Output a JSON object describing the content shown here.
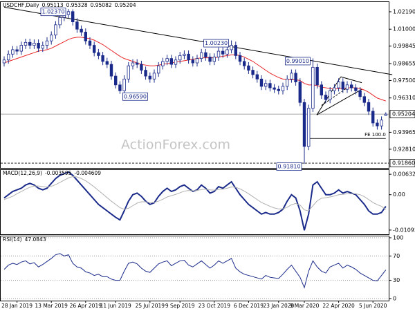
{
  "chart_data": {
    "type": "candlestick",
    "symbol": "USDCHF,Daily",
    "header_values": [
      0.95113,
      0.95328,
      0.95082,
      0.95204
    ],
    "color": "#1a2a8a",
    "dates": [
      null,
      null,
      null,
      "28 Jan 2019",
      null,
      null,
      null,
      null,
      null,
      null,
      null,
      "13 Mar 2019",
      null,
      null,
      null,
      null,
      null,
      null,
      null,
      "26 Apr 2019",
      null,
      null,
      null,
      null,
      null,
      null,
      "11 Jun 2019",
      null,
      null,
      null,
      null,
      null,
      null,
      null,
      "25 Jul 2019",
      null,
      null,
      null,
      null,
      null,
      null,
      "9 Sep 2019",
      null,
      null,
      null,
      null,
      null,
      null,
      null,
      "23 Oct 2019",
      null,
      null,
      null,
      null,
      null,
      null,
      null,
      "6 Dec 2019",
      null,
      null,
      null,
      null,
      null,
      null,
      "23 Jan 2020",
      null,
      null,
      null,
      null,
      null,
      "9 Mar 2020",
      null,
      null,
      null,
      null,
      null,
      null,
      null,
      "22 Apr 2020",
      null,
      null,
      null,
      null,
      null,
      null,
      null,
      "5 Jun 2020",
      null,
      null,
      null
    ],
    "candles": [
      [
        0.987,
        0.9915,
        0.9845,
        0.989
      ],
      [
        0.989,
        0.9955,
        0.9865,
        0.993
      ],
      [
        0.993,
        0.9985,
        0.9905,
        0.996
      ],
      [
        0.996,
        0.9985,
        0.9925,
        0.995
      ],
      [
        0.995,
        1.0015,
        0.9925,
        0.999
      ],
      [
        0.999,
        1.0035,
        0.9965,
        1.001
      ],
      [
        1.001,
        1.0035,
        0.9965,
        0.999
      ],
      [
        0.999,
        1.003,
        0.9965,
        1.0005
      ],
      [
        1.0005,
        1.003,
        0.9945,
        0.997
      ],
      [
        0.997,
        1.0015,
        0.9945,
        0.999
      ],
      [
        0.999,
        1.0045,
        0.9965,
        1.002
      ],
      [
        1.002,
        1.0085,
        0.9995,
        1.006
      ],
      [
        1.006,
        1.0155,
        1.0035,
        1.013
      ],
      [
        1.013,
        1.0205,
        1.0105,
        1.018
      ],
      [
        1.018,
        1.0225,
        1.0155,
        1.02
      ],
      [
        1.02,
        1.0237,
        1.0175,
        1.022
      ],
      [
        1.022,
        1.0235,
        1.0125,
        1.015
      ],
      [
        1.015,
        1.0175,
        1.0075,
        1.01
      ],
      [
        1.01,
        1.0125,
        1.0055,
        1.008
      ],
      [
        1.008,
        1.0105,
        0.9995,
        1.002
      ],
      [
        1.002,
        1.0045,
        0.9965,
        0.999
      ],
      [
        0.999,
        1.0015,
        0.9915,
        0.994
      ],
      [
        0.994,
        0.9965,
        0.9895,
        0.992
      ],
      [
        0.992,
        0.9945,
        0.9855,
        0.988
      ],
      [
        0.988,
        0.9905,
        0.9835,
        0.986
      ],
      [
        0.986,
        0.9885,
        0.9755,
        0.978
      ],
      [
        0.978,
        0.9805,
        0.9695,
        0.972
      ],
      [
        0.972,
        0.9745,
        0.9659,
        0.968
      ],
      [
        0.968,
        0.9785,
        0.9665,
        0.976
      ],
      [
        0.976,
        0.9875,
        0.9735,
        0.985
      ],
      [
        0.985,
        0.9895,
        0.9825,
        0.987
      ],
      [
        0.987,
        0.9895,
        0.9835,
        0.986
      ],
      [
        0.986,
        0.9885,
        0.9795,
        0.982
      ],
      [
        0.982,
        0.9845,
        0.9755,
        0.978
      ],
      [
        0.978,
        0.9805,
        0.9735,
        0.976
      ],
      [
        0.976,
        0.9825,
        0.9735,
        0.98
      ],
      [
        0.98,
        0.9875,
        0.9775,
        0.985
      ],
      [
        0.985,
        0.9905,
        0.9825,
        0.988
      ],
      [
        0.988,
        0.9925,
        0.9855,
        0.99
      ],
      [
        0.99,
        0.9925,
        0.9835,
        0.986
      ],
      [
        0.986,
        0.9915,
        0.9835,
        0.989
      ],
      [
        0.989,
        0.9945,
        0.9865,
        0.992
      ],
      [
        0.992,
        0.9955,
        0.9895,
        0.993
      ],
      [
        0.993,
        0.9955,
        0.9865,
        0.989
      ],
      [
        0.989,
        0.9915,
        0.9845,
        0.987
      ],
      [
        0.987,
        0.9925,
        0.9845,
        0.99
      ],
      [
        0.99,
        0.9965,
        0.9875,
        0.994
      ],
      [
        0.994,
        0.9965,
        0.9885,
        0.991
      ],
      [
        0.991,
        0.9935,
        0.9855,
        0.988
      ],
      [
        0.988,
        0.9935,
        0.9855,
        0.991
      ],
      [
        0.991,
        0.9975,
        0.9885,
        0.995
      ],
      [
        0.995,
        0.9975,
        0.9905,
        0.993
      ],
      [
        0.993,
        0.9985,
        0.9905,
        0.996
      ],
      [
        0.996,
        1.0023,
        0.9935,
        0.999
      ],
      [
        0.999,
        1.0015,
        0.9895,
        0.992
      ],
      [
        0.992,
        0.9945,
        0.9855,
        0.988
      ],
      [
        0.988,
        0.9905,
        0.9825,
        0.985
      ],
      [
        0.985,
        0.9875,
        0.9795,
        0.982
      ],
      [
        0.982,
        0.9845,
        0.9765,
        0.979
      ],
      [
        0.979,
        0.9815,
        0.9735,
        0.976
      ],
      [
        0.976,
        0.9785,
        0.9685,
        0.971
      ],
      [
        0.971,
        0.9755,
        0.9685,
        0.973
      ],
      [
        0.973,
        0.9755,
        0.9675,
        0.97
      ],
      [
        0.97,
        0.9725,
        0.9665,
        0.969
      ],
      [
        0.969,
        0.9715,
        0.9655,
        0.968
      ],
      [
        0.968,
        0.9735,
        0.9655,
        0.971
      ],
      [
        0.971,
        0.9785,
        0.9685,
        0.976
      ],
      [
        0.976,
        0.9825,
        0.9735,
        0.98
      ],
      [
        0.98,
        0.9825,
        0.9715,
        0.974
      ],
      [
        0.974,
        0.9765,
        0.9575,
        0.96
      ],
      [
        0.96,
        0.9625,
        0.9181,
        0.93
      ],
      [
        0.93,
        0.9585,
        0.9275,
        0.956
      ],
      [
        0.956,
        0.9901,
        0.9535,
        0.984
      ],
      [
        0.984,
        0.9865,
        0.9695,
        0.972
      ],
      [
        0.972,
        0.9745,
        0.9625,
        0.965
      ],
      [
        0.965,
        0.9675,
        0.9595,
        0.962
      ],
      [
        0.962,
        0.9705,
        0.9595,
        0.968
      ],
      [
        0.968,
        0.9725,
        0.9655,
        0.97
      ],
      [
        0.97,
        0.9765,
        0.9675,
        0.974
      ],
      [
        0.974,
        0.9765,
        0.9665,
        0.969
      ],
      [
        0.969,
        0.9745,
        0.9665,
        0.972
      ],
      [
        0.972,
        0.9745,
        0.9675,
        0.97
      ],
      [
        0.97,
        0.9725,
        0.9655,
        0.968
      ],
      [
        0.968,
        0.9705,
        0.9615,
        0.964
      ],
      [
        0.964,
        0.9665,
        0.9575,
        0.96
      ],
      [
        0.96,
        0.9625,
        0.9515,
        0.954
      ],
      [
        0.954,
        0.9565,
        0.9435,
        0.946
      ],
      [
        0.946,
        0.9485,
        0.9415,
        0.944
      ],
      [
        0.944,
        0.9505,
        0.9415,
        0.948
      ],
      [
        0.95113,
        0.95328,
        0.95082,
        0.95204
      ]
    ],
    "ma": {
      "color": "#e8262a",
      "values": [
        0.987,
        0.988,
        0.989,
        0.99,
        0.991,
        0.992,
        0.993,
        0.994,
        0.995,
        0.9955,
        0.996,
        0.997,
        0.9985,
        1.0,
        1.0015,
        1.003,
        1.004,
        1.0045,
        1.0045,
        1.004,
        1.0035,
        1.0025,
        1.001,
        0.9995,
        0.9975,
        0.9955,
        0.9935,
        0.9915,
        0.99,
        0.989,
        0.988,
        0.987,
        0.986,
        0.9855,
        0.985,
        0.985,
        0.9855,
        0.986,
        0.9865,
        0.987,
        0.9875,
        0.988,
        0.9885,
        0.989,
        0.9895,
        0.99,
        0.9905,
        0.9905,
        0.9905,
        0.9905,
        0.991,
        0.9915,
        0.992,
        0.9925,
        0.9925,
        0.992,
        0.991,
        0.9895,
        0.988,
        0.986,
        0.984,
        0.982,
        0.98,
        0.9785,
        0.977,
        0.976,
        0.9755,
        0.9755,
        0.9755,
        0.975,
        0.973,
        0.972,
        0.972,
        0.9715,
        0.9705,
        0.97,
        0.9695,
        0.969,
        0.9695,
        0.9695,
        0.97,
        0.97,
        0.97,
        0.9695,
        0.9685,
        0.967,
        0.965,
        0.963,
        0.962,
        0.961
      ]
    },
    "ylim": [
      0.9158,
      1.0285
    ],
    "yticks": [
      {
        "value": 1.0219,
        "label": "1.02190"
      },
      {
        "value": 1.01,
        "label": "1.01000"
      },
      {
        "value": 0.99845,
        "label": "0.99845"
      },
      {
        "value": 0.98655,
        "label": "0.98655"
      },
      {
        "value": 0.975,
        "label": "0.97500"
      },
      {
        "value": 0.9631,
        "label": "0.96310"
      },
      {
        "value": 0.93965,
        "label": "0.93965"
      },
      {
        "value": 0.9281,
        "label": "0.92810"
      }
    ],
    "price_line": {
      "value": 0.95204,
      "label": "0.95204"
    },
    "support_line": {
      "value": 0.9186,
      "label": "0.91860"
    },
    "trendlines": [
      {
        "from": [
          0,
          1.025
        ],
        "to": [
          90.5,
          0.979
        ]
      },
      {
        "from": [
          72.9,
          0.9515
        ],
        "to": [
          78.5,
          0.9775
        ]
      },
      {
        "from": [
          78.5,
          0.9775
        ],
        "to": [
          83.4,
          0.9735
        ]
      },
      {
        "from": [
          72.9,
          0.9515
        ],
        "to": [
          83.4,
          0.969
        ]
      },
      {
        "from": [
          74,
          0.958
        ],
        "to": [
          80,
          0.97
        ],
        "dashed": true
      }
    ],
    "annotations": [
      {
        "text": "1.02370",
        "at": [
          15,
          1.0237
        ],
        "side": "left"
      },
      {
        "text": "1.00230",
        "at": [
          53,
          1.0023
        ],
        "side": "left"
      },
      {
        "text": "0.99010",
        "at": [
          72,
          0.9901
        ],
        "side": "left"
      },
      {
        "text": "0.96590",
        "at": [
          27,
          0.9659
        ],
        "side": "right"
      },
      {
        "text": "0.91810",
        "at": [
          70,
          0.9181
        ],
        "side": "left"
      }
    ],
    "fe": {
      "text": "FE 100.0",
      "value": 0.9355,
      "from": 71,
      "to": 89
    },
    "watermark": "ActionForex.com",
    "macd": {
      "title": "MACD(12,26,9)",
      "header_values": [
        -0.003595,
        -0.004609
      ],
      "ylim": [
        -0.01203,
        0.00785
      ],
      "yticks": [
        0.006321,
        {
          "value": 0,
          "label": "0.00"
        },
        -0.010939
      ],
      "grid": false,
      "series": [
        {
          "color": "#1a2a8a",
          "values": [
            -0.001,
            0.0,
            0.001,
            0.0015,
            0.002,
            0.003,
            0.0035,
            0.003,
            0.002,
            0.0015,
            0.002,
            0.0035,
            0.005,
            0.006,
            0.0065,
            0.007,
            0.006,
            0.0045,
            0.003,
            0.0015,
            0.0,
            -0.0015,
            -0.003,
            -0.004,
            -0.005,
            -0.006,
            -0.007,
            -0.0078,
            -0.005,
            -0.002,
            0.0,
            0.0005,
            -0.0005,
            -0.002,
            -0.003,
            -0.0025,
            -0.0005,
            0.001,
            0.002,
            0.001,
            0.0015,
            0.0025,
            0.003,
            0.002,
            0.001,
            0.0015,
            0.003,
            0.002,
            0.0005,
            0.001,
            0.0025,
            0.002,
            0.003,
            0.004,
            0.002,
            0.0,
            -0.0015,
            -0.003,
            -0.004,
            -0.005,
            -0.006,
            -0.0055,
            -0.006,
            -0.006,
            -0.0055,
            -0.0045,
            -0.002,
            0.0,
            -0.001,
            -0.005,
            -0.011,
            -0.006,
            0.003,
            0.004,
            0.002,
            0.0,
            0.0,
            0.0005,
            0.0015,
            0.0005,
            0.001,
            0.0005,
            0.0,
            -0.0015,
            -0.003,
            -0.005,
            -0.006,
            -0.006,
            -0.0055,
            -0.003595
          ]
        },
        {
          "color": "#b0b0b0",
          "values": [
            -0.0015,
            -0.001,
            -0.0005,
            0.0003,
            0.001,
            0.0017,
            0.0023,
            0.0027,
            0.0027,
            0.0025,
            0.0024,
            0.0026,
            0.0031,
            0.0038,
            0.0045,
            0.0052,
            0.0056,
            0.0055,
            0.005,
            0.0043,
            0.0034,
            0.0024,
            0.0013,
            0.0002,
            -0.0009,
            -0.002,
            -0.003,
            -0.004,
            -0.0045,
            -0.0042,
            -0.0034,
            -0.0026,
            -0.0022,
            -0.0022,
            -0.0024,
            -0.0024,
            -0.002,
            -0.0014,
            -0.0007,
            -0.0003,
            0.0001,
            0.0006,
            0.0011,
            0.0013,
            0.0012,
            0.0013,
            0.0016,
            0.0017,
            0.0015,
            0.0014,
            0.0016,
            0.0017,
            0.002,
            0.0024,
            0.0023,
            0.0018,
            0.0011,
            0.0003,
            -0.0006,
            -0.0015,
            -0.0024,
            -0.003,
            -0.0036,
            -0.0041,
            -0.0044,
            -0.0044,
            -0.0039,
            -0.0031,
            -0.0027,
            -0.0032,
            -0.0047,
            -0.005,
            -0.0034,
            -0.0019,
            -0.0011,
            -0.0009,
            -0.0007,
            -0.0004,
            0.0,
            0.0001,
            0.0003,
            0.0003,
            0.0003,
            0.0,
            -0.0006,
            -0.0015,
            -0.0024,
            -0.0031,
            -0.0036,
            -0.004609
          ]
        }
      ]
    },
    "rsi": {
      "title": "RSI(14)",
      "header_values": [
        47.0843
      ],
      "ylim": [
        0,
        100
      ],
      "yticks": [
        100,
        70,
        30,
        0
      ],
      "grid": true,
      "color": "#1a2a8a",
      "values": [
        48,
        55,
        58,
        56,
        60,
        62,
        57,
        59,
        52,
        56,
        61,
        66,
        72,
        74,
        70,
        72,
        58,
        52,
        50,
        44,
        42,
        38,
        40,
        36,
        36,
        32,
        30,
        30,
        45,
        58,
        60,
        57,
        50,
        45,
        43,
        50,
        57,
        60,
        62,
        54,
        58,
        62,
        63,
        55,
        52,
        57,
        62,
        56,
        50,
        55,
        62,
        58,
        62,
        66,
        50,
        44,
        40,
        38,
        36,
        34,
        32,
        38,
        35,
        34,
        33,
        40,
        48,
        55,
        45,
        35,
        18,
        45,
        62,
        52,
        45,
        42,
        52,
        55,
        58,
        50,
        55,
        52,
        48,
        42,
        38,
        34,
        30,
        29,
        38,
        47.0843
      ]
    }
  }
}
